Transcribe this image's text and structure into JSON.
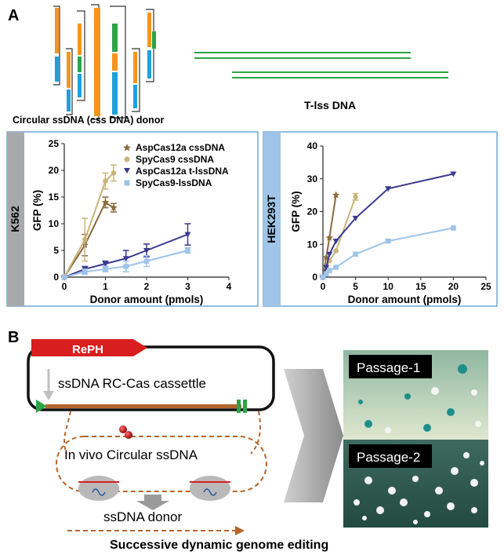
{
  "panel_a": {
    "letter": "A",
    "css_label": "Circular ssDNA (css DNA) donor",
    "tlss_label": "T-lss DNA"
  },
  "chart_data": [
    {
      "type": "line",
      "side_label": "K562",
      "xlabel": "Donor amount (pmols)",
      "ylabel": "GFP (%)",
      "xlim": [
        0,
        4
      ],
      "ylim": [
        0,
        25
      ],
      "xticks": [
        "0",
        "1",
        "2",
        "3",
        "4"
      ],
      "yticks": [
        "0",
        "5",
        "10",
        "15",
        "20",
        "25"
      ],
      "legend_position": "top-right",
      "series": [
        {
          "name": "AspCas12a cssDNA",
          "color": "#8b6a3e",
          "marker": "star",
          "x": [
            0,
            0.5,
            1,
            1.2
          ],
          "y": [
            0,
            6,
            14,
            13
          ],
          "err": [
            0,
            2,
            1,
            0.8
          ]
        },
        {
          "name": "SpyCas9 cssDNA",
          "color": "#c8b47a",
          "marker": "circle",
          "x": [
            0,
            0.5,
            1,
            1.2
          ],
          "y": [
            0,
            7,
            18,
            19.5
          ],
          "err": [
            0,
            4,
            1.5,
            1.5
          ]
        },
        {
          "name": "AspCas12a t-lssDNA",
          "color": "#3b3a8f",
          "marker": "triangle-down",
          "x": [
            0,
            0.5,
            1,
            1.5,
            2,
            3
          ],
          "y": [
            0,
            1.5,
            2.5,
            3.5,
            5,
            8
          ],
          "err": [
            0,
            0.5,
            0.5,
            1.5,
            1.2,
            2
          ]
        },
        {
          "name": "SpyCas9-lssDNA",
          "color": "#9ec4ea",
          "marker": "square",
          "x": [
            0,
            0.5,
            1,
            1.5,
            2,
            3
          ],
          "y": [
            0,
            1,
            1.5,
            2,
            3,
            5
          ],
          "err": [
            0,
            0.5,
            0.5,
            1,
            1,
            0.5
          ]
        }
      ]
    },
    {
      "type": "line",
      "side_label": "HEK293T",
      "xlabel": "Donor amount (pmols)",
      "ylabel": "GFP (%)",
      "xlim": [
        0,
        25
      ],
      "ylim": [
        0,
        40
      ],
      "xticks": [
        "0",
        "5",
        "10",
        "15",
        "20",
        "25"
      ],
      "yticks": [
        "0",
        "10",
        "20",
        "30",
        "40"
      ],
      "series": [
        {
          "name": "AspCas12a cssDNA",
          "color": "#8b6a3e",
          "marker": "star",
          "x": [
            0,
            0.5,
            1,
            2
          ],
          "y": [
            0,
            6,
            12,
            25
          ],
          "err": [
            0,
            0,
            0,
            0
          ]
        },
        {
          "name": "SpyCas9 cssDNA",
          "color": "#c8b47a",
          "marker": "circle",
          "x": [
            0,
            0.5,
            1,
            2,
            5
          ],
          "y": [
            0,
            3,
            5,
            8,
            24.5
          ],
          "err": [
            0,
            0,
            0,
            0,
            1
          ]
        },
        {
          "name": "AspCas12a t-lssDNA",
          "color": "#3b3a8f",
          "marker": "triangle-down",
          "x": [
            0,
            0.5,
            1,
            2,
            5,
            10,
            20
          ],
          "y": [
            0,
            3,
            7,
            11,
            18,
            27,
            31.5
          ],
          "err": [
            0,
            0,
            0,
            0,
            0,
            0,
            0
          ]
        },
        {
          "name": "SpyCas9-lssDNA",
          "color": "#9ec4ea",
          "marker": "square",
          "x": [
            0,
            0.5,
            1,
            2,
            5,
            10,
            20
          ],
          "y": [
            0,
            1,
            2,
            3,
            7,
            11,
            15
          ],
          "err": [
            0,
            0,
            0,
            0,
            0,
            0,
            0
          ]
        }
      ]
    }
  ],
  "panel_b": {
    "letter": "B",
    "reph_label": "RePH",
    "cassette_label": "ssDNA RC-Cas cassettle",
    "circular_label": "In vivo Circular ssDNA",
    "donor_label": "ssDNA donor",
    "caption": "Successive dynamic genome editing",
    "passage1": "Passage-1",
    "passage2": "Passage-2"
  },
  "colors": {
    "orange": "#f7941d",
    "green": "#2ca448",
    "blue": "#1ea0dc",
    "red": "#d81e1e",
    "brown": "#b5652b",
    "frame_blue": "#6fa8d4",
    "grey_bar": "#a7a9ac"
  }
}
